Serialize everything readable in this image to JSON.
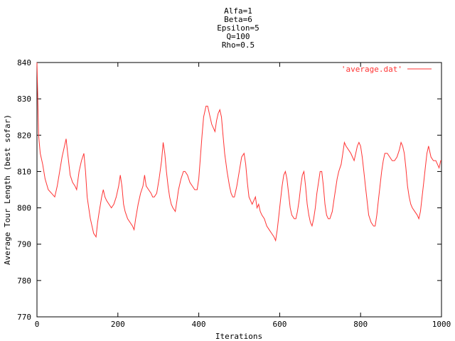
{
  "chart_data": {
    "type": "line",
    "title_lines": [
      "Alfa=1",
      "Beta=6",
      "Epsilon=5",
      "Q=100",
      "Rho=0.5"
    ],
    "xlabel": "Iterations",
    "ylabel": "Average Tour Length (best sofar)",
    "xlim": [
      0,
      1000
    ],
    "ylim": [
      770,
      840
    ],
    "xticks": [
      0,
      200,
      400,
      600,
      800,
      1000
    ],
    "yticks": [
      770,
      780,
      790,
      800,
      810,
      820,
      830,
      840
    ],
    "legend_position": "top-right",
    "grid": false,
    "series": [
      {
        "name": "'average.dat'",
        "color": "#ff3333",
        "points": [
          [
            0,
            840
          ],
          [
            4,
            820
          ],
          [
            8,
            815
          ],
          [
            14,
            812
          ],
          [
            20,
            808
          ],
          [
            28,
            805
          ],
          [
            36,
            804
          ],
          [
            44,
            803
          ],
          [
            50,
            806
          ],
          [
            56,
            810
          ],
          [
            62,
            814
          ],
          [
            68,
            817
          ],
          [
            72,
            819
          ],
          [
            76,
            815
          ],
          [
            82,
            809
          ],
          [
            88,
            807
          ],
          [
            94,
            806
          ],
          [
            98,
            805
          ],
          [
            104,
            810
          ],
          [
            110,
            813
          ],
          [
            116,
            815
          ],
          [
            120,
            810
          ],
          [
            124,
            803
          ],
          [
            128,
            800
          ],
          [
            132,
            797
          ],
          [
            136,
            795
          ],
          [
            140,
            793
          ],
          [
            146,
            792
          ],
          [
            150,
            796
          ],
          [
            154,
            799
          ],
          [
            160,
            803
          ],
          [
            164,
            805
          ],
          [
            168,
            803
          ],
          [
            172,
            802
          ],
          [
            178,
            801
          ],
          [
            184,
            800
          ],
          [
            190,
            801
          ],
          [
            196,
            803
          ],
          [
            202,
            806
          ],
          [
            206,
            809
          ],
          [
            210,
            806
          ],
          [
            214,
            801
          ],
          [
            218,
            799
          ],
          [
            224,
            797
          ],
          [
            230,
            796
          ],
          [
            236,
            795
          ],
          [
            240,
            794
          ],
          [
            244,
            797
          ],
          [
            250,
            801
          ],
          [
            256,
            804
          ],
          [
            262,
            806
          ],
          [
            266,
            809
          ],
          [
            270,
            806
          ],
          [
            276,
            805
          ],
          [
            282,
            804
          ],
          [
            286,
            803
          ],
          [
            290,
            803
          ],
          [
            296,
            804
          ],
          [
            302,
            808
          ],
          [
            308,
            813
          ],
          [
            312,
            818
          ],
          [
            316,
            815
          ],
          [
            320,
            810
          ],
          [
            324,
            806
          ],
          [
            328,
            803
          ],
          [
            332,
            801
          ],
          [
            336,
            800
          ],
          [
            342,
            799
          ],
          [
            346,
            802
          ],
          [
            350,
            805
          ],
          [
            356,
            808
          ],
          [
            362,
            810
          ],
          [
            366,
            810
          ],
          [
            372,
            809
          ],
          [
            378,
            807
          ],
          [
            384,
            806
          ],
          [
            390,
            805
          ],
          [
            396,
            805
          ],
          [
            400,
            808
          ],
          [
            404,
            814
          ],
          [
            408,
            820
          ],
          [
            412,
            825
          ],
          [
            418,
            828
          ],
          [
            422,
            828
          ],
          [
            428,
            825
          ],
          [
            432,
            823
          ],
          [
            436,
            822
          ],
          [
            440,
            821
          ],
          [
            444,
            824
          ],
          [
            448,
            826
          ],
          [
            452,
            827
          ],
          [
            456,
            825
          ],
          [
            460,
            820
          ],
          [
            464,
            815
          ],
          [
            470,
            810
          ],
          [
            476,
            806
          ],
          [
            480,
            804
          ],
          [
            484,
            803
          ],
          [
            488,
            803
          ],
          [
            494,
            806
          ],
          [
            500,
            810
          ],
          [
            506,
            814
          ],
          [
            512,
            815
          ],
          [
            516,
            812
          ],
          [
            520,
            807
          ],
          [
            524,
            803
          ],
          [
            528,
            802
          ],
          [
            532,
            801
          ],
          [
            536,
            802
          ],
          [
            540,
            803
          ],
          [
            544,
            800
          ],
          [
            548,
            801
          ],
          [
            552,
            799
          ],
          [
            556,
            798
          ],
          [
            562,
            797
          ],
          [
            568,
            795
          ],
          [
            574,
            794
          ],
          [
            580,
            793
          ],
          [
            586,
            792
          ],
          [
            590,
            791
          ],
          [
            594,
            794
          ],
          [
            598,
            798
          ],
          [
            602,
            802
          ],
          [
            606,
            806
          ],
          [
            610,
            809
          ],
          [
            614,
            810
          ],
          [
            618,
            808
          ],
          [
            622,
            804
          ],
          [
            626,
            800
          ],
          [
            630,
            798
          ],
          [
            636,
            797
          ],
          [
            640,
            797
          ],
          [
            644,
            799
          ],
          [
            648,
            802
          ],
          [
            652,
            806
          ],
          [
            656,
            809
          ],
          [
            660,
            810
          ],
          [
            664,
            806
          ],
          [
            668,
            801
          ],
          [
            672,
            798
          ],
          [
            676,
            796
          ],
          [
            680,
            795
          ],
          [
            684,
            797
          ],
          [
            688,
            800
          ],
          [
            692,
            804
          ],
          [
            696,
            807
          ],
          [
            700,
            810
          ],
          [
            704,
            810
          ],
          [
            708,
            806
          ],
          [
            712,
            801
          ],
          [
            716,
            798
          ],
          [
            720,
            797
          ],
          [
            724,
            797
          ],
          [
            730,
            799
          ],
          [
            734,
            802
          ],
          [
            738,
            805
          ],
          [
            742,
            808
          ],
          [
            746,
            810
          ],
          [
            752,
            812
          ],
          [
            756,
            815
          ],
          [
            760,
            818
          ],
          [
            764,
            817
          ],
          [
            770,
            816
          ],
          [
            776,
            815
          ],
          [
            780,
            814
          ],
          [
            784,
            813
          ],
          [
            788,
            815
          ],
          [
            792,
            817
          ],
          [
            796,
            818
          ],
          [
            800,
            817
          ],
          [
            804,
            814
          ],
          [
            808,
            810
          ],
          [
            812,
            806
          ],
          [
            816,
            802
          ],
          [
            820,
            798
          ],
          [
            826,
            796
          ],
          [
            832,
            795
          ],
          [
            836,
            795
          ],
          [
            840,
            798
          ],
          [
            844,
            802
          ],
          [
            848,
            806
          ],
          [
            852,
            810
          ],
          [
            856,
            813
          ],
          [
            860,
            815
          ],
          [
            866,
            815
          ],
          [
            872,
            814
          ],
          [
            878,
            813
          ],
          [
            884,
            813
          ],
          [
            890,
            814
          ],
          [
            896,
            816
          ],
          [
            900,
            818
          ],
          [
            904,
            817
          ],
          [
            908,
            815
          ],
          [
            912,
            811
          ],
          [
            916,
            806
          ],
          [
            920,
            803
          ],
          [
            924,
            801
          ],
          [
            928,
            800
          ],
          [
            934,
            799
          ],
          [
            940,
            798
          ],
          [
            944,
            797
          ],
          [
            948,
            799
          ],
          [
            952,
            803
          ],
          [
            956,
            807
          ],
          [
            960,
            811
          ],
          [
            964,
            815
          ],
          [
            968,
            817
          ],
          [
            974,
            814
          ],
          [
            980,
            813
          ],
          [
            986,
            813
          ],
          [
            990,
            812
          ],
          [
            994,
            811
          ],
          [
            998,
            813
          ],
          [
            1000,
            813
          ]
        ]
      }
    ]
  }
}
